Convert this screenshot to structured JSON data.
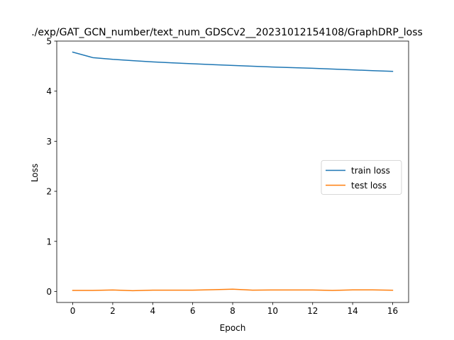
{
  "chart_data": {
    "type": "line",
    "title": "./exp/GAT_GCN_number/text_num_GDSCv2__20231012154108/GraphDRP_loss",
    "xlabel": "Epoch",
    "ylabel": "Loss",
    "xlim": [
      -0.8,
      16.8
    ],
    "ylim": [
      -0.22,
      5.0
    ],
    "xticks": [
      0,
      2,
      4,
      6,
      8,
      10,
      12,
      14,
      16
    ],
    "yticks": [
      0,
      1,
      2,
      3,
      4,
      5
    ],
    "grid": false,
    "legend_position": "center-right",
    "x": [
      0,
      1,
      2,
      3,
      4,
      5,
      6,
      7,
      8,
      9,
      10,
      11,
      12,
      13,
      14,
      15,
      16
    ],
    "series": [
      {
        "name": "train loss",
        "color": "#1f77b4",
        "values": [
          4.78,
          4.67,
          4.635,
          4.61,
          4.585,
          4.565,
          4.547,
          4.53,
          4.513,
          4.497,
          4.482,
          4.47,
          4.457,
          4.441,
          4.425,
          4.41,
          4.395
        ]
      },
      {
        "name": "test loss",
        "color": "#ff7f0e",
        "values": [
          0.02,
          0.02,
          0.03,
          0.015,
          0.025,
          0.025,
          0.025,
          0.035,
          0.045,
          0.025,
          0.03,
          0.03,
          0.03,
          0.02,
          0.032,
          0.032,
          0.025
        ]
      }
    ]
  }
}
